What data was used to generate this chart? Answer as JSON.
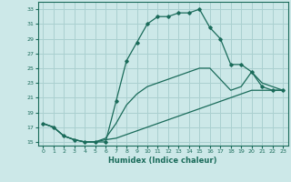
{
  "xlabel": "Humidex (Indice chaleur)",
  "background_color": "#cce8e8",
  "grid_color": "#aad0d0",
  "line_color": "#1a6b5a",
  "xlim": [
    -0.5,
    23.5
  ],
  "ylim": [
    14.5,
    34
  ],
  "xticks": [
    0,
    1,
    2,
    3,
    4,
    5,
    6,
    7,
    8,
    9,
    10,
    11,
    12,
    13,
    14,
    15,
    16,
    17,
    18,
    19,
    20,
    21,
    22,
    23
  ],
  "yticks": [
    15,
    17,
    19,
    21,
    23,
    25,
    27,
    29,
    31,
    33
  ],
  "line1_x": [
    0,
    1,
    2,
    3,
    4,
    5,
    6,
    7,
    8,
    9,
    10,
    11,
    12,
    13,
    14,
    15,
    16,
    17,
    18,
    19,
    20,
    21,
    22,
    23
  ],
  "line1_y": [
    17.5,
    17.0,
    15.8,
    15.3,
    15.0,
    15.0,
    15.0,
    20.5,
    26.0,
    28.5,
    31.0,
    32.0,
    32.0,
    32.5,
    32.5,
    33.0,
    30.5,
    29.0,
    25.5,
    25.5,
    24.5,
    22.5,
    22.0,
    22.0
  ],
  "line2_x": [
    0,
    1,
    2,
    3,
    4,
    5,
    6,
    7,
    8,
    9,
    10,
    11,
    12,
    13,
    14,
    15,
    16,
    17,
    18,
    19,
    20,
    21,
    22,
    23
  ],
  "line2_y": [
    17.5,
    17.0,
    15.8,
    15.3,
    15.0,
    15.0,
    15.3,
    15.5,
    16.0,
    16.5,
    17.0,
    17.5,
    18.0,
    18.5,
    19.0,
    19.5,
    20.0,
    20.5,
    21.0,
    21.5,
    22.0,
    22.0,
    22.0,
    22.0
  ],
  "line3_x": [
    0,
    1,
    2,
    3,
    4,
    5,
    6,
    7,
    8,
    9,
    10,
    11,
    12,
    13,
    14,
    15,
    16,
    17,
    18,
    19,
    20,
    21,
    22,
    23
  ],
  "line3_y": [
    17.5,
    17.0,
    15.8,
    15.3,
    15.0,
    15.0,
    15.5,
    17.5,
    20.0,
    21.5,
    22.5,
    23.0,
    23.5,
    24.0,
    24.5,
    25.0,
    25.0,
    23.5,
    22.0,
    22.5,
    24.5,
    23.0,
    22.5,
    22.0
  ]
}
